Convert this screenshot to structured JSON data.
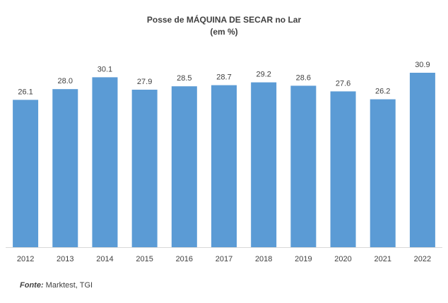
{
  "chart_data": {
    "type": "bar",
    "title": "Posse de MÁQUINA DE SECAR no Lar",
    "subtitle": "(em %)",
    "categories": [
      "2012",
      "2013",
      "2014",
      "2015",
      "2016",
      "2017",
      "2018",
      "2019",
      "2020",
      "2021",
      "2022"
    ],
    "values": [
      26.1,
      28.0,
      30.1,
      27.9,
      28.5,
      28.7,
      29.2,
      28.6,
      27.6,
      26.2,
      30.9
    ],
    "value_labels": [
      "26.1",
      "28.0",
      "30.1",
      "27.9",
      "28.5",
      "28.7",
      "29.2",
      "28.6",
      "27.6",
      "26.2",
      "30.9"
    ],
    "ylim": [
      0,
      30.9
    ],
    "grid": false,
    "bar_color": "#5B9BD5",
    "axis_color": "#D9D9D9"
  },
  "source": {
    "label": "Fonte:",
    "text": " Marktest, TGI"
  }
}
